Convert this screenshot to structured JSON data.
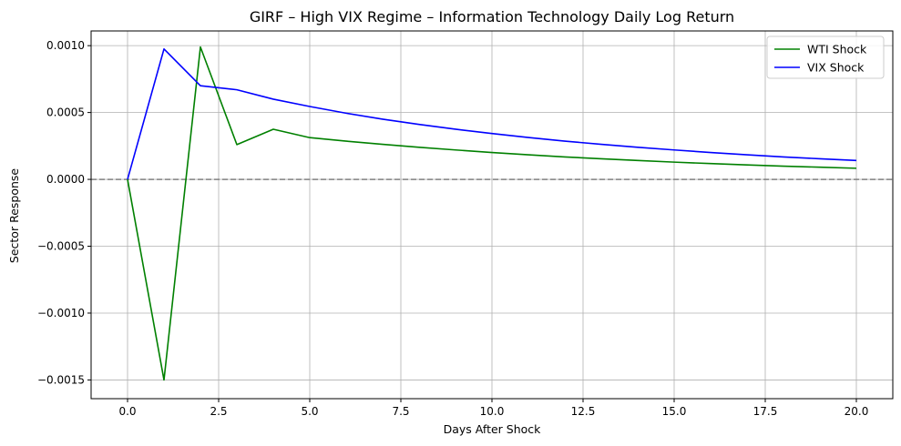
{
  "chart_data": {
    "type": "line",
    "title": "GIRF – High VIX Regime – Information Technology Daily Log Return",
    "xlabel": "Days After Shock",
    "ylabel": "Sector Response",
    "xlim": [
      -1,
      21
    ],
    "ylim": [
      -0.00164,
      0.00111
    ],
    "x_ticks": [
      0,
      2.5,
      5,
      7.5,
      10,
      12.5,
      15,
      17.5,
      20
    ],
    "x_tick_labels": [
      "0.0",
      "2.5",
      "5.0",
      "7.5",
      "10.0",
      "12.5",
      "15.0",
      "17.5",
      "20.0"
    ],
    "y_ticks": [
      -0.0015,
      -0.001,
      -0.0005,
      0,
      0.0005,
      0.001
    ],
    "y_tick_labels": [
      "−0.0015",
      "−0.0010",
      "−0.0005",
      "0.0000",
      "0.0005",
      "0.0010"
    ],
    "grid": true,
    "legend_position": "top-right",
    "zero_line": {
      "y": 0,
      "style": "dashed",
      "color": "#808080"
    },
    "x": [
      0,
      1,
      2,
      3,
      4,
      5,
      6,
      7,
      8,
      9,
      10,
      11,
      12,
      13,
      14,
      15,
      16,
      17,
      18,
      19,
      20
    ],
    "series": [
      {
        "name": "WTI Shock",
        "color": "#008000",
        "values": [
          0,
          -0.0015,
          0.00099,
          0.00026,
          0.000375,
          0.000312,
          0.000286,
          0.000262,
          0.00024,
          0.00022,
          0.000201,
          0.000184,
          0.000168,
          0.000154,
          0.000141,
          0.000129,
          0.000118,
          0.000108,
          9.9e-05,
          9.1e-05,
          8.3e-05
        ]
      },
      {
        "name": "VIX Shock",
        "color": "#0000ff",
        "values": [
          0,
          0.000975,
          0.0007,
          0.00067,
          0.0006,
          0.000545,
          0.000495,
          0.00045,
          0.000411,
          0.000375,
          0.000343,
          0.000313,
          0.000286,
          0.000262,
          0.00024,
          0.00022,
          0.000201,
          0.000184,
          0.000168,
          0.000154,
          0.000141
        ]
      }
    ]
  }
}
